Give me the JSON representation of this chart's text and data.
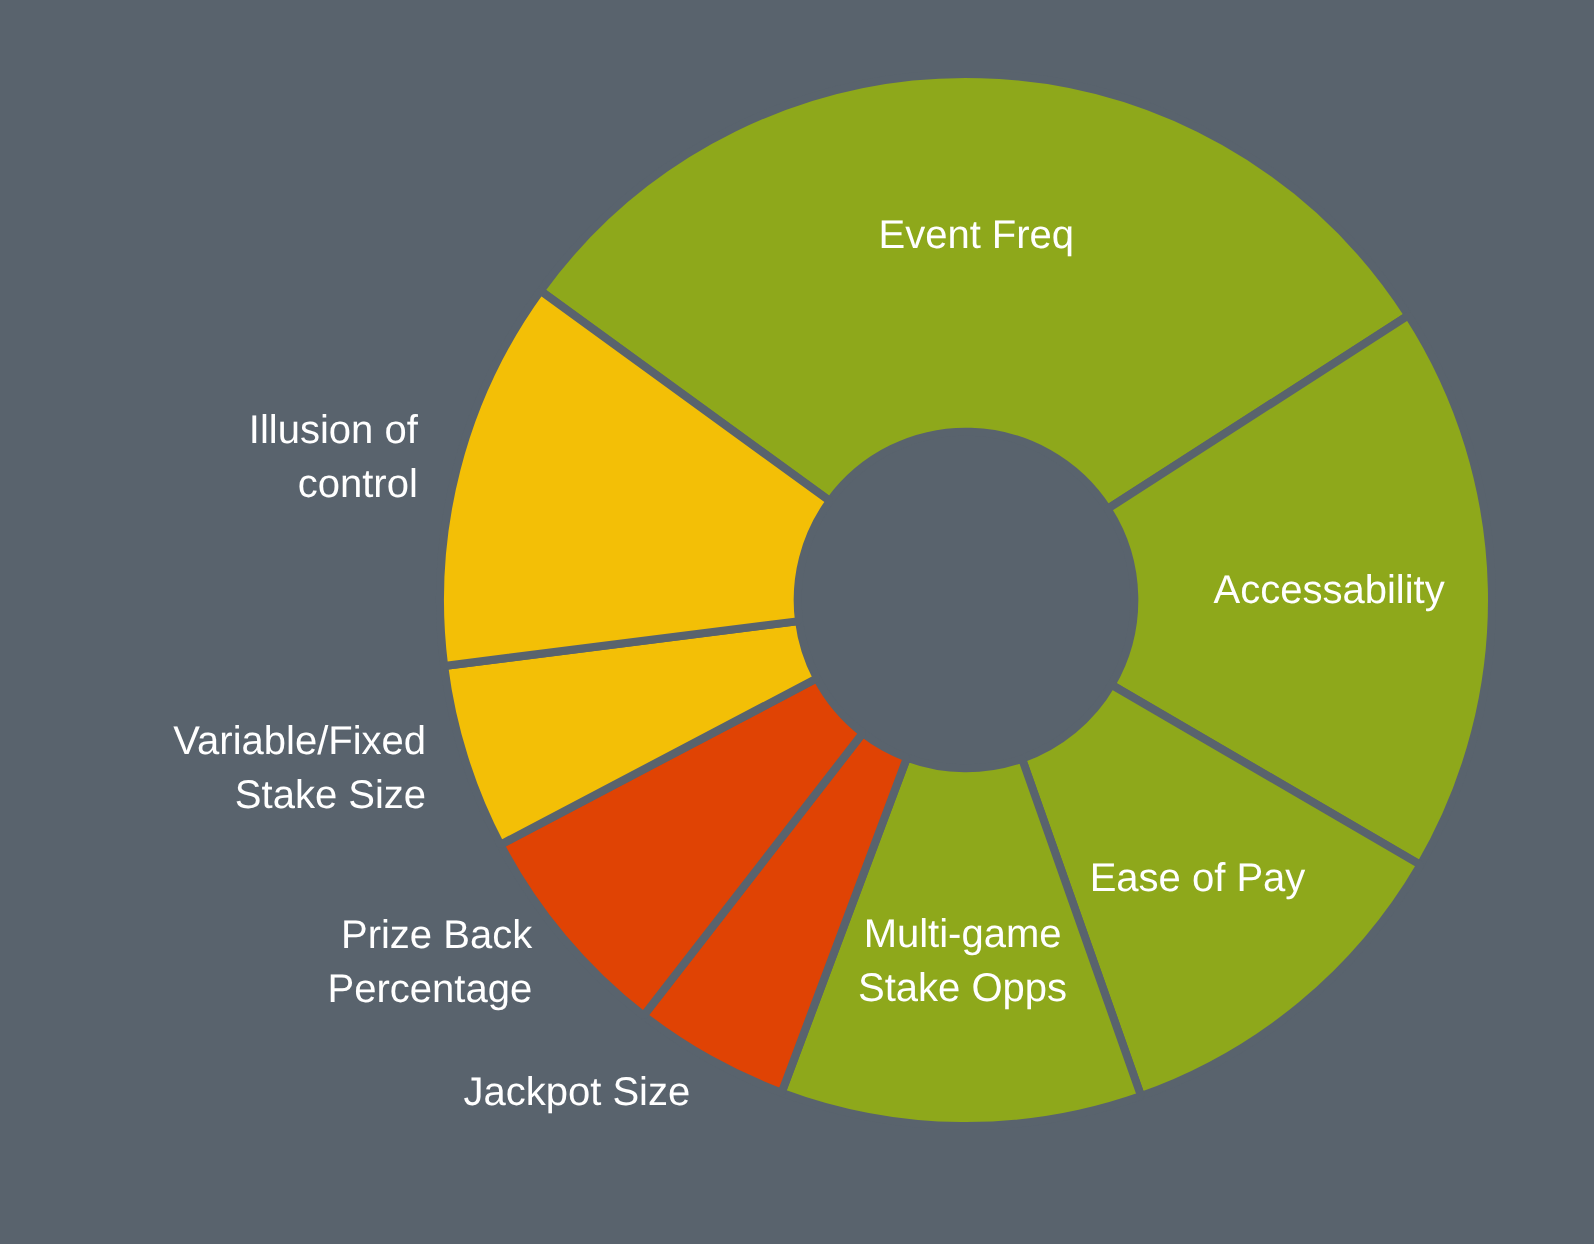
{
  "chart_data": {
    "type": "donut",
    "categories": [
      "Event Freq",
      "Accessability",
      "Ease of Pay",
      "Multi-game Stake Opps",
      "Jackpot Size",
      "Prize Back Percentage",
      "Variable/Fixed Stake Size",
      "Illusion of control"
    ],
    "values": [
      30.9,
      17.5,
      11.2,
      11.1,
      4.8,
      6.8,
      5.7,
      12.0
    ],
    "colors": [
      "#8ea81b",
      "#8ea81b",
      "#8ea81b",
      "#8ea81b",
      "#e04304",
      "#e04304",
      "#f3bf06",
      "#f3bf06"
    ],
    "legend": false
  }
}
